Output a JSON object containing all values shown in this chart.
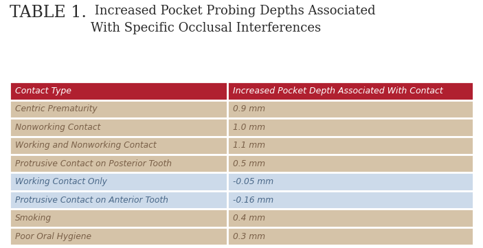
{
  "title_prefix": "TABLE 1.",
  "title_rest": " Increased Pocket Probing Depths Associated\nWith Specific Occlusal Interferences",
  "header": [
    "Contact Type",
    "Increased Pocket Depth Associated With Contact"
  ],
  "rows": [
    [
      "Centric Prematurity",
      "0.9 mm"
    ],
    [
      "Nonworking Contact",
      "1.0 mm"
    ],
    [
      "Working and Nonworking Contact",
      "1.1 mm"
    ],
    [
      "Protrusive Contact on Posterior Tooth",
      "0.5 mm"
    ],
    [
      "Working Contact Only",
      "-0.05 mm"
    ],
    [
      "Protrusive Contact on Anterior Tooth",
      "-0.16 mm"
    ],
    [
      "Smoking",
      "0.4 mm"
    ],
    [
      "Poor Oral Hygiene",
      "0.3 mm"
    ]
  ],
  "row_colors": [
    "#d5c3a8",
    "#d5c3a8",
    "#d5c3a8",
    "#d5c3a8",
    "#ccdaea",
    "#ccdaea",
    "#d5c3a8",
    "#d5c3a8"
  ],
  "header_bg": "#b02030",
  "header_text_color": "#ffffff",
  "title_color": "#2a2a2a",
  "title_prefix_color": "#2a2a2a",
  "border_color": "#ffffff",
  "figure_bg": "#ffffff",
  "row_text_tan": "#7a6048",
  "row_text_blue": "#4a6888",
  "col_split": 0.47
}
